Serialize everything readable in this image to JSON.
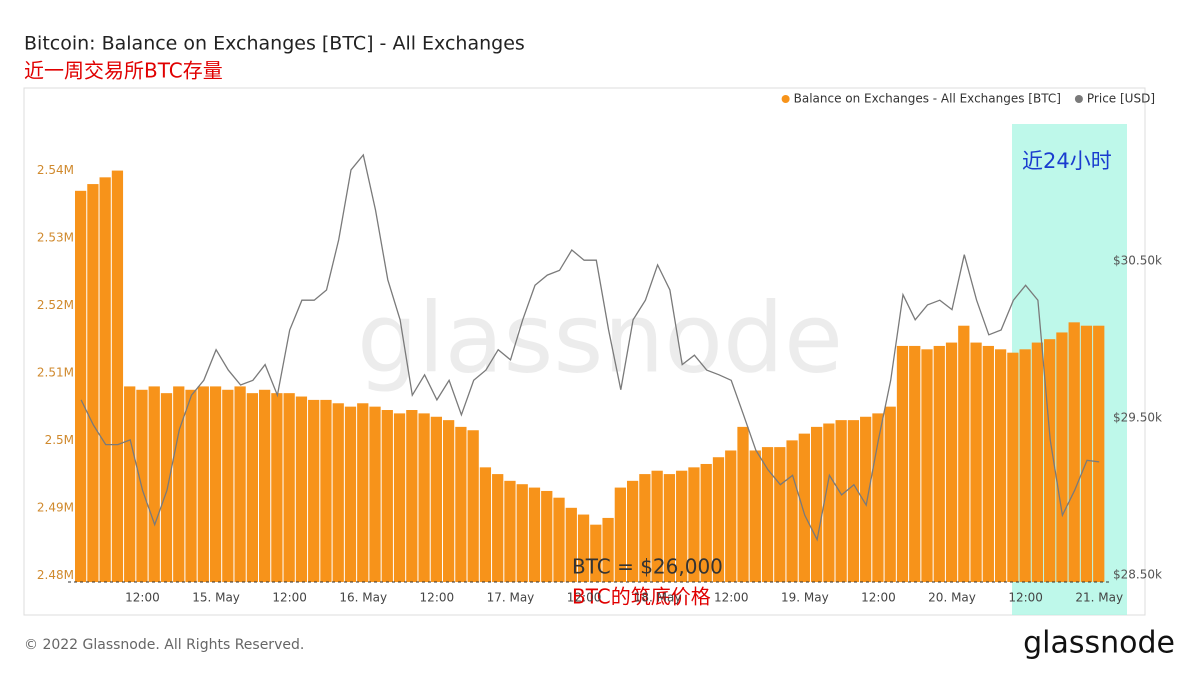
{
  "chart_data": {
    "type": "combo",
    "title": "Bitcoin: Balance on Exchanges [BTC] - All Exchanges",
    "subtitle": "近一周交易所BTC存量",
    "x": [
      2,
      4,
      6,
      8,
      10,
      12,
      14,
      16,
      18,
      20,
      22,
      24,
      26,
      28,
      30,
      32,
      34,
      36,
      38,
      40,
      42,
      44,
      46,
      48,
      50,
      52,
      54,
      56,
      58,
      60,
      62,
      64,
      66,
      68,
      70,
      72,
      74,
      76,
      78,
      80,
      82,
      84,
      86,
      88,
      90,
      92,
      94,
      96,
      98,
      100,
      102,
      104,
      106,
      108,
      110,
      112,
      114,
      116,
      118,
      120,
      122,
      124,
      126,
      128,
      130,
      132,
      134,
      136,
      138,
      140,
      142,
      144,
      146,
      148,
      150,
      152,
      154,
      156,
      158,
      160,
      162,
      164,
      166,
      168
    ],
    "xlim": [
      1,
      170
    ],
    "xticks": [
      {
        "value": 12,
        "label": "12:00"
      },
      {
        "value": 24,
        "label": "15. May"
      },
      {
        "value": 36,
        "label": "12:00"
      },
      {
        "value": 48,
        "label": "16. May"
      },
      {
        "value": 60,
        "label": "12:00"
      },
      {
        "value": 72,
        "label": "17. May"
      },
      {
        "value": 84,
        "label": "12:00"
      },
      {
        "value": 96,
        "label": "18. May"
      },
      {
        "value": 108,
        "label": "12:00"
      },
      {
        "value": 120,
        "label": "19. May"
      },
      {
        "value": 132,
        "label": "12:00"
      },
      {
        "value": 144,
        "label": "20. May"
      },
      {
        "value": 156,
        "label": "12:00"
      },
      {
        "value": 168,
        "label": "21. May"
      }
    ],
    "ylim": [
      2479000,
      2547500
    ],
    "yticks": [
      {
        "value": 2480000,
        "label": "2.48M"
      },
      {
        "value": 2490000,
        "label": "2.49M"
      },
      {
        "value": 2500000,
        "label": "2.5M"
      },
      {
        "value": 2510000,
        "label": "2.51M"
      },
      {
        "value": 2520000,
        "label": "2.52M"
      },
      {
        "value": 2530000,
        "label": "2.53M"
      },
      {
        "value": 2540000,
        "label": "2.54M"
      }
    ],
    "y2lim": [
      28455,
      31398
    ],
    "y2ticks": [
      {
        "value": 28500,
        "label": "$28.50k"
      },
      {
        "value": 29500,
        "label": "$29.50k"
      },
      {
        "value": 30500,
        "label": "$30.50k"
      }
    ],
    "series": [
      {
        "name": "Balance on Exchanges - All Exchanges [BTC]",
        "type": "bar",
        "color": "#f7931a",
        "values": [
          2537000,
          2538000,
          2539000,
          2540000,
          2508000,
          2507500,
          2508000,
          2507000,
          2508000,
          2507500,
          2508000,
          2508000,
          2507500,
          2508000,
          2507000,
          2507500,
          2507000,
          2507000,
          2506500,
          2506000,
          2506000,
          2505500,
          2505000,
          2505500,
          2505000,
          2504500,
          2504000,
          2504500,
          2504000,
          2503500,
          2503000,
          2502000,
          2501500,
          2496000,
          2495000,
          2494000,
          2493500,
          2493000,
          2492500,
          2491500,
          2490000,
          2489000,
          2487500,
          2488500,
          2493000,
          2494000,
          2495000,
          2495500,
          2495000,
          2495500,
          2496000,
          2496500,
          2497500,
          2498500,
          2502000,
          2498500,
          2499000,
          2499000,
          2500000,
          2501000,
          2502000,
          2502500,
          2503000,
          2503000,
          2503500,
          2504000,
          2505000,
          2514000,
          2514000,
          2513500,
          2514000,
          2514500,
          2517000,
          2514500,
          2514000,
          2513500,
          2513000,
          2513500,
          2514500,
          2515000,
          2516000,
          2517500,
          2517000,
          2517000
        ]
      },
      {
        "name": "Price [USD]",
        "type": "line",
        "axis": "y2",
        "color": "#7a7a7a",
        "values": [
          29615,
          29455,
          29330,
          29330,
          29360,
          29040,
          28820,
          29040,
          29425,
          29645,
          29740,
          29935,
          29805,
          29710,
          29740,
          29840,
          29645,
          30060,
          30250,
          30250,
          30315,
          30635,
          31080,
          31175,
          30825,
          30380,
          30125,
          29645,
          29775,
          29615,
          29740,
          29520,
          29740,
          29805,
          29935,
          29870,
          30125,
          30345,
          30410,
          30440,
          30570,
          30505,
          30505,
          30060,
          29680,
          30125,
          30250,
          30475,
          30315,
          29840,
          29900,
          29805,
          29775,
          29740,
          29520,
          29295,
          29170,
          29075,
          29135,
          28880,
          28725,
          29135,
          29010,
          29075,
          28945,
          29360,
          29740,
          30285,
          30125,
          30220,
          30250,
          30190,
          30540,
          30250,
          30030,
          30060,
          30250,
          30345,
          30250,
          29360,
          28880,
          29040,
          29230,
          29220
        ]
      }
    ],
    "annotations": [
      "近24小时",
      "BTC = $26,000",
      "BTC的筑底价格"
    ],
    "watermark": "glassnode"
  },
  "footer": {
    "copyright": "© 2022 Glassnode. All Rights Reserved.",
    "logo": "glassnode"
  }
}
